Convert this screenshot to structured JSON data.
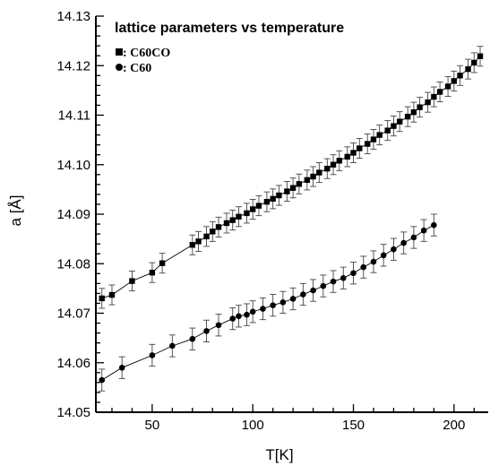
{
  "chart_data": {
    "type": "scatter",
    "title": "lattice parameters vs temperature",
    "xlabel": "T[K]",
    "ylabel": "a [Å]",
    "xlim": [
      22,
      217
    ],
    "ylim": [
      14.05,
      14.13
    ],
    "x_ticks": [
      50,
      100,
      150,
      200
    ],
    "y_ticks": [
      14.05,
      14.06,
      14.07,
      14.08,
      14.09,
      14.1,
      14.11,
      14.12,
      14.13
    ],
    "x_tick_labels": [
      "50",
      "100",
      "150",
      "200"
    ],
    "y_tick_labels": [
      "14.05",
      "14.06",
      "14.07",
      "14.08",
      "14.09",
      "14.10",
      "14.11",
      "14.12",
      "14.13"
    ],
    "grid": false,
    "legend_placement": "top-left",
    "series": [
      {
        "name": "C60CO",
        "legend_label": ": C60CO",
        "marker": "square",
        "color": "#000000",
        "x": [
          25,
          30,
          40,
          50,
          55,
          70,
          73,
          77,
          80,
          83,
          87,
          90,
          93,
          97,
          100,
          103,
          107,
          110,
          113,
          117,
          120,
          123,
          127,
          130,
          133,
          137,
          140,
          143,
          147,
          150,
          153,
          157,
          160,
          163,
          167,
          170,
          173,
          177,
          180,
          183,
          187,
          190,
          193,
          197,
          200,
          203,
          207,
          210,
          213
        ],
        "y": [
          14.073,
          14.0737,
          14.0765,
          14.0782,
          14.0801,
          14.0838,
          14.0845,
          14.0855,
          14.0865,
          14.0874,
          14.0882,
          14.0888,
          14.0895,
          14.0902,
          14.091,
          14.0917,
          14.0925,
          14.0931,
          14.0938,
          14.0946,
          14.0953,
          14.0961,
          14.0969,
          14.0976,
          14.0984,
          14.0992,
          14.1,
          14.1008,
          14.1016,
          14.1024,
          14.1033,
          14.1042,
          14.1051,
          14.106,
          14.1069,
          14.1078,
          14.1087,
          14.1097,
          14.1106,
          14.1116,
          14.1126,
          14.1137,
          14.1147,
          14.1158,
          14.1169,
          14.118,
          14.1193,
          14.1206,
          14.1219
        ],
        "error": 0.002
      },
      {
        "name": "C60",
        "legend_label": ": C60",
        "marker": "circle",
        "color": "#000000",
        "x": [
          25,
          35,
          50,
          60,
          70,
          77,
          83,
          90,
          93,
          97,
          100,
          105,
          110,
          115,
          120,
          125,
          130,
          135,
          140,
          145,
          150,
          155,
          160,
          165,
          170,
          175,
          180,
          185,
          190
        ],
        "y": [
          14.0565,
          14.059,
          14.0615,
          14.0634,
          14.0648,
          14.0664,
          14.0676,
          14.0689,
          14.0694,
          14.0697,
          14.0703,
          14.0709,
          14.0716,
          14.0722,
          14.0729,
          14.0738,
          14.0746,
          14.0755,
          14.0764,
          14.0771,
          14.0781,
          14.0793,
          14.0804,
          14.0817,
          14.0829,
          14.0842,
          14.0853,
          14.0867,
          14.0878
        ],
        "error": 0.0022
      }
    ]
  }
}
